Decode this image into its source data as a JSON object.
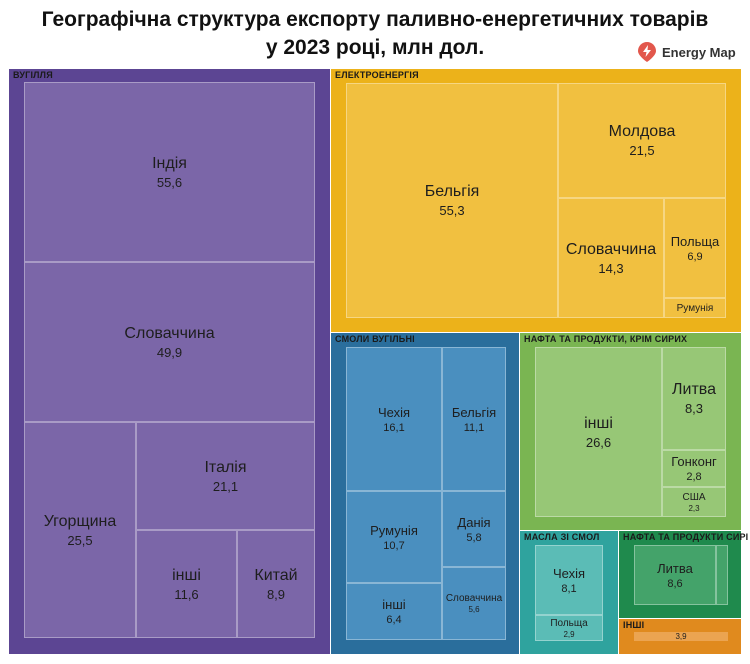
{
  "header": {
    "title_line1": "Географічна структура експорту паливно-енергетичних товарів",
    "title_line2": "у 2023 році, млн дол.",
    "brand": "Energy Map",
    "brand_icon": "lightning-pin-icon"
  },
  "chart_data": {
    "type": "treemap",
    "groups": [
      {
        "name": "ВУГІЛЛЯ",
        "color": "#5c4593",
        "items": [
          {
            "name": "Індія",
            "value": "55,6"
          },
          {
            "name": "Словаччина",
            "value": "49,9"
          },
          {
            "name": "Угорщина",
            "value": "25,5"
          },
          {
            "name": "Італія",
            "value": "21,1"
          },
          {
            "name": "інші",
            "value": "11,6"
          },
          {
            "name": "Китай",
            "value": "8,9"
          }
        ]
      },
      {
        "name": "ЕЛЕКТРОЕНЕРГІЯ",
        "color": "#ecb21a",
        "items": [
          {
            "name": "Бельгія",
            "value": "55,3"
          },
          {
            "name": "Молдова",
            "value": "21,5"
          },
          {
            "name": "Словаччина",
            "value": "14,3"
          },
          {
            "name": "Польща",
            "value": "6,9"
          },
          {
            "name": "Румунія",
            "value": ""
          }
        ]
      },
      {
        "name": "СМОЛИ ВУГІЛЬНІ",
        "color": "#2a6e9c",
        "items": [
          {
            "name": "Чехія",
            "value": "16,1"
          },
          {
            "name": "Бельгія",
            "value": "11,1"
          },
          {
            "name": "Румунія",
            "value": "10,7"
          },
          {
            "name": "Данія",
            "value": "5,8"
          },
          {
            "name": "інші",
            "value": "6,4"
          },
          {
            "name": "Словаччина",
            "value": "5,6"
          }
        ]
      },
      {
        "name": "НАФТА ТА ПРОДУКТИ, КРІМ СИРИХ",
        "color": "#7ab552",
        "items": [
          {
            "name": "інші",
            "value": "26,6"
          },
          {
            "name": "Литва",
            "value": "8,3"
          },
          {
            "name": "Гонконг",
            "value": "2,8"
          },
          {
            "name": "США",
            "value": "2,3"
          }
        ]
      },
      {
        "name": "МАСЛА ЗІ СМОЛ",
        "color": "#2fa39e",
        "items": [
          {
            "name": "Чехія",
            "value": "8,1"
          },
          {
            "name": "Польща",
            "value": "2,9"
          }
        ]
      },
      {
        "name": "НАФТА ТА ПРОДУКТИ СИРІ",
        "color": "#1f8a4d",
        "items": [
          {
            "name": "Литва",
            "value": "8,6"
          }
        ]
      },
      {
        "name": "ІНШІ",
        "color": "#e08a1e",
        "items": [
          {
            "name": "",
            "value": "3,9"
          }
        ]
      }
    ]
  }
}
